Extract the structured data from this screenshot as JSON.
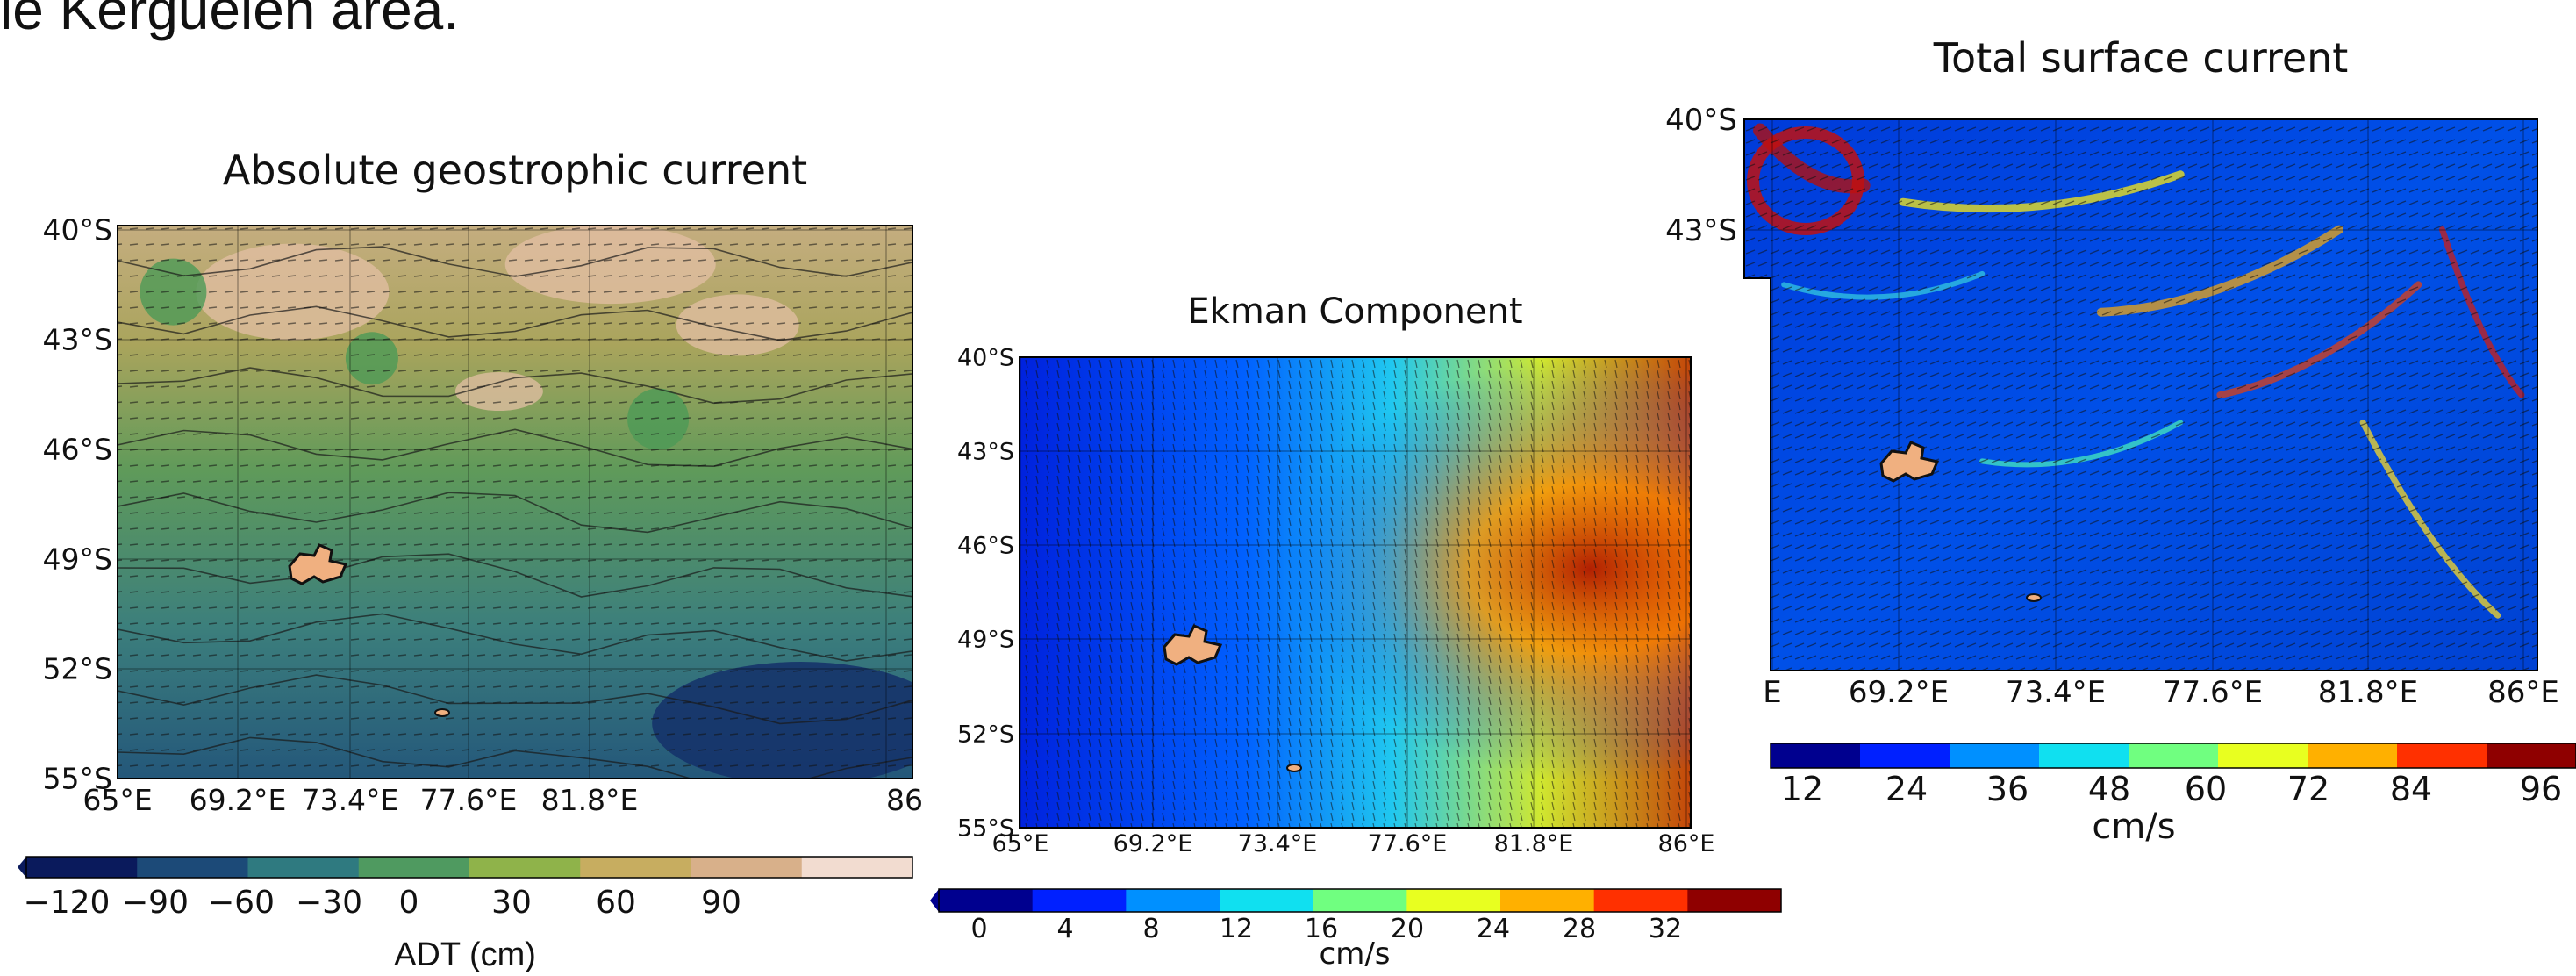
{
  "slide": {
    "caption_fragment": "le Kerguelen area."
  },
  "chart_data": [
    {
      "type": "heatmap",
      "title": "Absolute geostrophic current",
      "xticks": [
        "65°E",
        "69.2°E",
        "73.4°E",
        "77.6°E",
        "81.8°E",
        "86"
      ],
      "yticks": [
        "40°S",
        "43°S",
        "46°S",
        "49°S",
        "52°S",
        "55°S"
      ],
      "colorbar": {
        "label": "ADT (cm)",
        "ticks": [
          "−120",
          "−90",
          "−60",
          "−30",
          "0",
          "30",
          "60",
          "90"
        ],
        "range": [
          -120,
          100
        ],
        "colors": [
          "#0a1a5c",
          "#1c4a78",
          "#2f7a80",
          "#4f9a60",
          "#8fb34a",
          "#c7ad60",
          "#d8b08a",
          "#f2dcd0"
        ]
      }
    },
    {
      "type": "heatmap",
      "title": "Ekman Component",
      "xticks": [
        "65°E",
        "69.2°E",
        "73.4°E",
        "77.6°E",
        "81.8°E",
        "86°E"
      ],
      "yticks": [
        "40°S",
        "43°S",
        "46°S",
        "49°S",
        "52°S",
        "55°S"
      ],
      "colorbar": {
        "label": "cm/s",
        "ticks": [
          "0",
          "4",
          "8",
          "12",
          "16",
          "20",
          "24",
          "28",
          "32"
        ],
        "range": [
          0,
          35
        ],
        "colors": [
          "#00008f",
          "#0020ff",
          "#0090ff",
          "#10e0f0",
          "#70ff80",
          "#e8ff20",
          "#ffb000",
          "#ff3000",
          "#8f0000"
        ]
      }
    },
    {
      "type": "heatmap",
      "title": "Total surface current",
      "xticks": [
        "E",
        "69.2°E",
        "73.4°E",
        "77.6°E",
        "81.8°E",
        "86°E"
      ],
      "yticks": [
        "40°S",
        "43°S"
      ],
      "colorbar": {
        "label": "cm/s",
        "ticks": [
          "12",
          "24",
          "36",
          "48",
          "60",
          "72",
          "84",
          "96"
        ],
        "range": [
          0,
          100
        ],
        "colors": [
          "#00008f",
          "#0020ff",
          "#0090ff",
          "#10e0f0",
          "#70ff80",
          "#e8ff20",
          "#ffb000",
          "#ff3000",
          "#8f0000"
        ]
      }
    }
  ]
}
